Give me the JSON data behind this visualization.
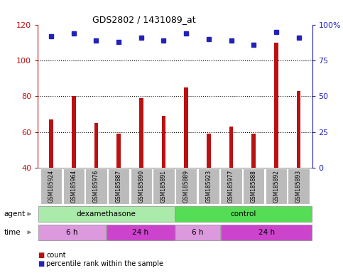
{
  "title": "GDS2802 / 1431089_at",
  "samples": [
    "GSM185924",
    "GSM185964",
    "GSM185976",
    "GSM185887",
    "GSM185890",
    "GSM185891",
    "GSM185889",
    "GSM185923",
    "GSM185977",
    "GSM185888",
    "GSM185892",
    "GSM185893"
  ],
  "counts": [
    67,
    80,
    65,
    59,
    79,
    69,
    85,
    59,
    63,
    59,
    110,
    83
  ],
  "percentile_ranks": [
    92,
    94,
    89,
    88,
    91,
    89,
    94,
    90,
    89,
    86,
    95,
    91
  ],
  "ylim_left": [
    40,
    120
  ],
  "ylim_right": [
    0,
    100
  ],
  "left_ticks": [
    40,
    60,
    80,
    100,
    120
  ],
  "right_ticks": [
    0,
    25,
    50,
    75,
    100
  ],
  "right_tick_labels": [
    "0",
    "25",
    "50",
    "75",
    "100%"
  ],
  "bar_color": "#bb1111",
  "dot_color": "#2222bb",
  "bar_bottom": 40,
  "agent_groups": [
    {
      "label": "dexamethasone",
      "start": 0,
      "end": 6,
      "color": "#aaeaaa"
    },
    {
      "label": "control",
      "start": 6,
      "end": 12,
      "color": "#55dd55"
    }
  ],
  "time_groups": [
    {
      "label": "6 h",
      "start": 0,
      "end": 3,
      "color": "#dd99dd"
    },
    {
      "label": "24 h",
      "start": 3,
      "end": 6,
      "color": "#cc44cc"
    },
    {
      "label": "6 h",
      "start": 6,
      "end": 8,
      "color": "#dd99dd"
    },
    {
      "label": "24 h",
      "start": 8,
      "end": 12,
      "color": "#cc44cc"
    }
  ],
  "background_color": "#ffffff",
  "label_row_color": "#bbbbbb",
  "agent_label": "agent",
  "time_label": "time",
  "legend_count_label": "count",
  "legend_pct_label": "percentile rank within the sample"
}
